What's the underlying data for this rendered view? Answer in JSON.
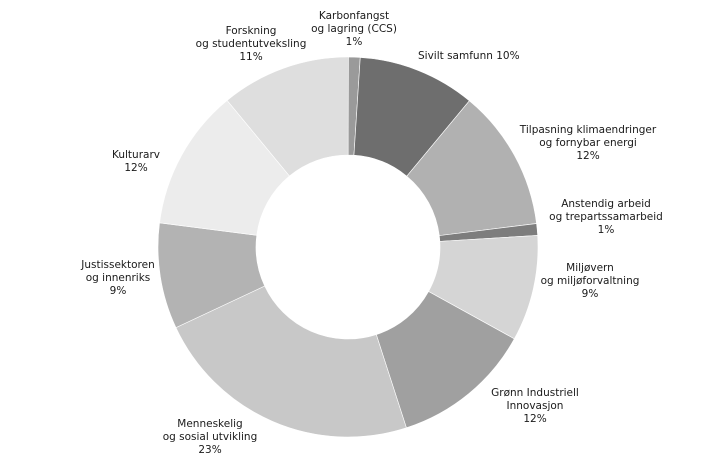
{
  "chart_data": {
    "type": "pie",
    "variant": "donut",
    "title": "",
    "legend": "none",
    "slices": [
      {
        "label": "Karbonfangst og lagring (CCS)",
        "lines": [
          "Karbonfangst",
          "og lagring (CCS)",
          "1%"
        ],
        "value": 1,
        "color": "#9a9a9a"
      },
      {
        "label": "Sivilt samfunn",
        "lines": [
          "Sivilt samfunn 10%"
        ],
        "value": 10,
        "color": "#6e6e6e"
      },
      {
        "label": "Tilpasning klimaendringer og fornybar energi",
        "lines": [
          "Tilpasning klimaendringer",
          "og fornybar energi",
          "12%"
        ],
        "value": 12,
        "color": "#b1b1b1"
      },
      {
        "label": "Anstendig arbeid og trepartssamarbeid",
        "lines": [
          "Anstendig arbeid",
          "og trepartssamarbeid",
          "1%"
        ],
        "value": 1,
        "color": "#7d7d7d"
      },
      {
        "label": "Miljøvern og miljøforvaltning",
        "lines": [
          "Miljøvern",
          "og miljøforvaltning",
          "9%"
        ],
        "value": 9,
        "color": "#d5d5d5"
      },
      {
        "label": "Grønn Industriell Innovasjon",
        "lines": [
          "Grønn Industriell",
          "Innovasjon",
          "12%"
        ],
        "value": 12,
        "color": "#a0a0a0"
      },
      {
        "label": "Menneskelig og sosial utvikling",
        "lines": [
          "Menneskelig",
          "og sosial utvikling",
          "23%"
        ],
        "value": 23,
        "color": "#c8c8c8"
      },
      {
        "label": "Justissektoren og innenriks",
        "lines": [
          "Justissektoren",
          "og innenriks",
          "9%"
        ],
        "value": 9,
        "color": "#b3b3b3"
      },
      {
        "label": "Kulturarv",
        "lines": [
          "Kulturarv",
          "12%"
        ],
        "value": 12,
        "color": "#ececec"
      },
      {
        "label": "Forskning og studentutveksling",
        "lines": [
          "Forskning",
          "og studentutveksling",
          "11%"
        ],
        "value": 11,
        "color": "#dedede"
      }
    ]
  }
}
